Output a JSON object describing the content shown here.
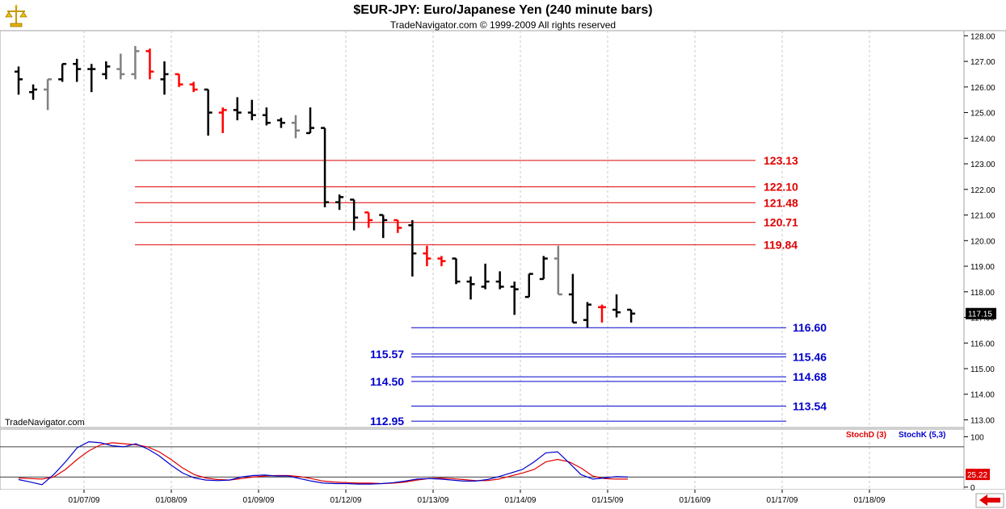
{
  "header": {
    "title": "$EUR-JPY:  Euro/Japanese Yen  (240 minute bars)",
    "subtitle": "TradeNavigator.com © 1999-2009 All rights reserved"
  },
  "watermark": "TradeNavigator.com",
  "colors": {
    "up_bar": "#000000",
    "down_bar": "#ff0000",
    "neutral_bar": "#808080",
    "resistance": "#e00000",
    "support": "#0000cc",
    "stochD": "#e00000",
    "stochK": "#0000cc",
    "grid": "#c8c8c8"
  },
  "chart_data": [
    {
      "type": "bar",
      "subtype": "ohlc",
      "title": "$EUR-JPY:  Euro/Japanese Yen  (240 minute bars)",
      "ylim": [
        112.7,
        128.2
      ],
      "y_ticks": [
        "128.00",
        "127.00",
        "126.00",
        "125.00",
        "124.00",
        "123.00",
        "122.00",
        "121.00",
        "120.00",
        "119.00",
        "118.00",
        "117.00",
        "116.00",
        "115.00",
        "114.00",
        "113.00"
      ],
      "x_ticks": [
        "01/07/09",
        "01/08/09",
        "01/09/09",
        "01/12/09",
        "01/13/09",
        "01/14/09",
        "01/15/09",
        "01/16/09",
        "01/17/09",
        "01/18/09"
      ],
      "last_price": "117.15",
      "bars": [
        {
          "o": 126.6,
          "h": 126.8,
          "l": 125.7,
          "c": 126.3,
          "color": "black"
        },
        {
          "o": 125.8,
          "h": 126.1,
          "l": 125.5,
          "c": 125.9,
          "color": "black"
        },
        {
          "o": 125.9,
          "h": 126.3,
          "l": 125.1,
          "c": 126.3,
          "color": "gray"
        },
        {
          "o": 126.3,
          "h": 126.9,
          "l": 126.2,
          "c": 126.9,
          "color": "black"
        },
        {
          "o": 126.9,
          "h": 127.1,
          "l": 126.2,
          "c": 126.7,
          "color": "black"
        },
        {
          "o": 126.7,
          "h": 126.9,
          "l": 125.8,
          "c": 126.7,
          "color": "black"
        },
        {
          "o": 126.5,
          "h": 127.0,
          "l": 126.3,
          "c": 126.8,
          "color": "black"
        },
        {
          "o": 126.7,
          "h": 127.3,
          "l": 126.3,
          "c": 126.5,
          "color": "gray"
        },
        {
          "o": 126.5,
          "h": 127.6,
          "l": 126.3,
          "c": 127.4,
          "color": "gray"
        },
        {
          "o": 127.4,
          "h": 127.5,
          "l": 126.3,
          "c": 126.6,
          "color": "red"
        },
        {
          "o": 126.3,
          "h": 127.0,
          "l": 125.7,
          "c": 126.5,
          "color": "black"
        },
        {
          "o": 126.5,
          "h": 126.5,
          "l": 126.0,
          "c": 126.1,
          "color": "red"
        },
        {
          "o": 126.1,
          "h": 126.2,
          "l": 125.8,
          "c": 125.9,
          "color": "red"
        },
        {
          "o": 125.9,
          "h": 125.9,
          "l": 124.1,
          "c": 125.0,
          "color": "black"
        },
        {
          "o": 125.0,
          "h": 125.2,
          "l": 124.2,
          "c": 125.1,
          "color": "red"
        },
        {
          "o": 125.1,
          "h": 125.6,
          "l": 124.7,
          "c": 125.0,
          "color": "black"
        },
        {
          "o": 125.0,
          "h": 125.5,
          "l": 124.7,
          "c": 124.9,
          "color": "black"
        },
        {
          "o": 124.9,
          "h": 125.2,
          "l": 124.5,
          "c": 124.6,
          "color": "black"
        },
        {
          "o": 124.7,
          "h": 124.8,
          "l": 124.4,
          "c": 124.6,
          "color": "black"
        },
        {
          "o": 124.6,
          "h": 124.9,
          "l": 124.0,
          "c": 124.3,
          "color": "gray"
        },
        {
          "o": 124.2,
          "h": 125.2,
          "l": 124.2,
          "c": 124.4,
          "color": "black"
        },
        {
          "o": 124.4,
          "h": 124.4,
          "l": 121.3,
          "c": 121.5,
          "color": "black"
        },
        {
          "o": 121.5,
          "h": 121.8,
          "l": 121.2,
          "c": 121.7,
          "color": "black"
        },
        {
          "o": 121.6,
          "h": 121.6,
          "l": 120.4,
          "c": 120.9,
          "color": "black"
        },
        {
          "o": 121.1,
          "h": 121.1,
          "l": 120.5,
          "c": 120.8,
          "color": "red"
        },
        {
          "o": 121.0,
          "h": 121.0,
          "l": 120.1,
          "c": 120.8,
          "color": "black"
        },
        {
          "o": 120.8,
          "h": 120.8,
          "l": 120.3,
          "c": 120.5,
          "color": "red"
        },
        {
          "o": 120.6,
          "h": 120.8,
          "l": 118.6,
          "c": 119.5,
          "color": "black"
        },
        {
          "o": 119.5,
          "h": 119.8,
          "l": 119.0,
          "c": 119.3,
          "color": "red"
        },
        {
          "o": 119.3,
          "h": 119.4,
          "l": 119.0,
          "c": 119.2,
          "color": "red"
        },
        {
          "o": 119.3,
          "h": 119.3,
          "l": 118.3,
          "c": 118.4,
          "color": "black"
        },
        {
          "o": 118.4,
          "h": 118.6,
          "l": 117.7,
          "c": 118.3,
          "color": "black"
        },
        {
          "o": 118.2,
          "h": 119.1,
          "l": 118.1,
          "c": 118.4,
          "color": "black"
        },
        {
          "o": 118.4,
          "h": 118.8,
          "l": 118.1,
          "c": 118.2,
          "color": "black"
        },
        {
          "o": 118.2,
          "h": 118.4,
          "l": 117.1,
          "c": 118.1,
          "color": "black"
        },
        {
          "o": 117.8,
          "h": 118.7,
          "l": 117.8,
          "c": 118.7,
          "color": "black"
        },
        {
          "o": 118.5,
          "h": 119.4,
          "l": 118.5,
          "c": 119.3,
          "color": "black"
        },
        {
          "o": 119.3,
          "h": 119.8,
          "l": 117.9,
          "c": 117.9,
          "color": "gray"
        },
        {
          "o": 117.9,
          "h": 118.7,
          "l": 116.8,
          "c": 116.8,
          "color": "black"
        },
        {
          "o": 116.9,
          "h": 117.6,
          "l": 116.6,
          "c": 117.5,
          "color": "black"
        },
        {
          "o": 117.4,
          "h": 117.5,
          "l": 116.8,
          "c": 117.4,
          "color": "red"
        },
        {
          "o": 117.3,
          "h": 117.9,
          "l": 117.0,
          "c": 117.2,
          "color": "black"
        },
        {
          "o": 117.3,
          "h": 117.3,
          "l": 116.8,
          "c": 117.15,
          "color": "black"
        }
      ],
      "resistance_levels": [
        {
          "value": 123.13,
          "label": "123.13"
        },
        {
          "value": 122.1,
          "label": "122.10"
        },
        {
          "value": 121.48,
          "label": "121.48"
        },
        {
          "value": 120.71,
          "label": "120.71"
        },
        {
          "value": 119.84,
          "label": "119.84"
        }
      ],
      "support_levels": [
        {
          "value": 116.6,
          "label": "116.60",
          "side": "right"
        },
        {
          "value": 115.57,
          "label": "115.57",
          "side": "left"
        },
        {
          "value": 115.46,
          "label": "115.46",
          "side": "right"
        },
        {
          "value": 114.68,
          "label": "114.68",
          "side": "right"
        },
        {
          "value": 114.5,
          "label": "114.50",
          "side": "left"
        },
        {
          "value": 113.54,
          "label": "113.54",
          "side": "right"
        },
        {
          "value": 112.95,
          "label": "112.95",
          "side": "left"
        }
      ]
    },
    {
      "type": "line",
      "ylim": [
        -5,
        115
      ],
      "y_ticks": [
        "100",
        "0"
      ],
      "reference_lines": [
        80,
        20
      ],
      "last_value": "25.22",
      "series": [
        {
          "name": "StochD (3)",
          "color": "red",
          "values": [
            18,
            17,
            16,
            20,
            35,
            55,
            72,
            84,
            88,
            86,
            84,
            80,
            70,
            55,
            38,
            25,
            18,
            15,
            14,
            17,
            20,
            22,
            23,
            23,
            21,
            17,
            12,
            10,
            9,
            8,
            8,
            7,
            8,
            10,
            14,
            17,
            18,
            17,
            15,
            13,
            13,
            16,
            22,
            28,
            35,
            50,
            55,
            50,
            38,
            22,
            17,
            16,
            16
          ]
        },
        {
          "name": "StochK (5,3)",
          "color": "blue",
          "values": [
            15,
            10,
            5,
            25,
            50,
            78,
            90,
            88,
            82,
            80,
            86,
            76,
            62,
            44,
            28,
            18,
            14,
            13,
            14,
            20,
            23,
            24,
            22,
            22,
            17,
            12,
            8,
            7,
            7,
            6,
            6,
            7,
            9,
            12,
            16,
            17,
            16,
            14,
            12,
            12,
            15,
            21,
            28,
            35,
            50,
            68,
            70,
            48,
            25,
            16,
            18,
            21,
            20
          ]
        }
      ]
    }
  ]
}
